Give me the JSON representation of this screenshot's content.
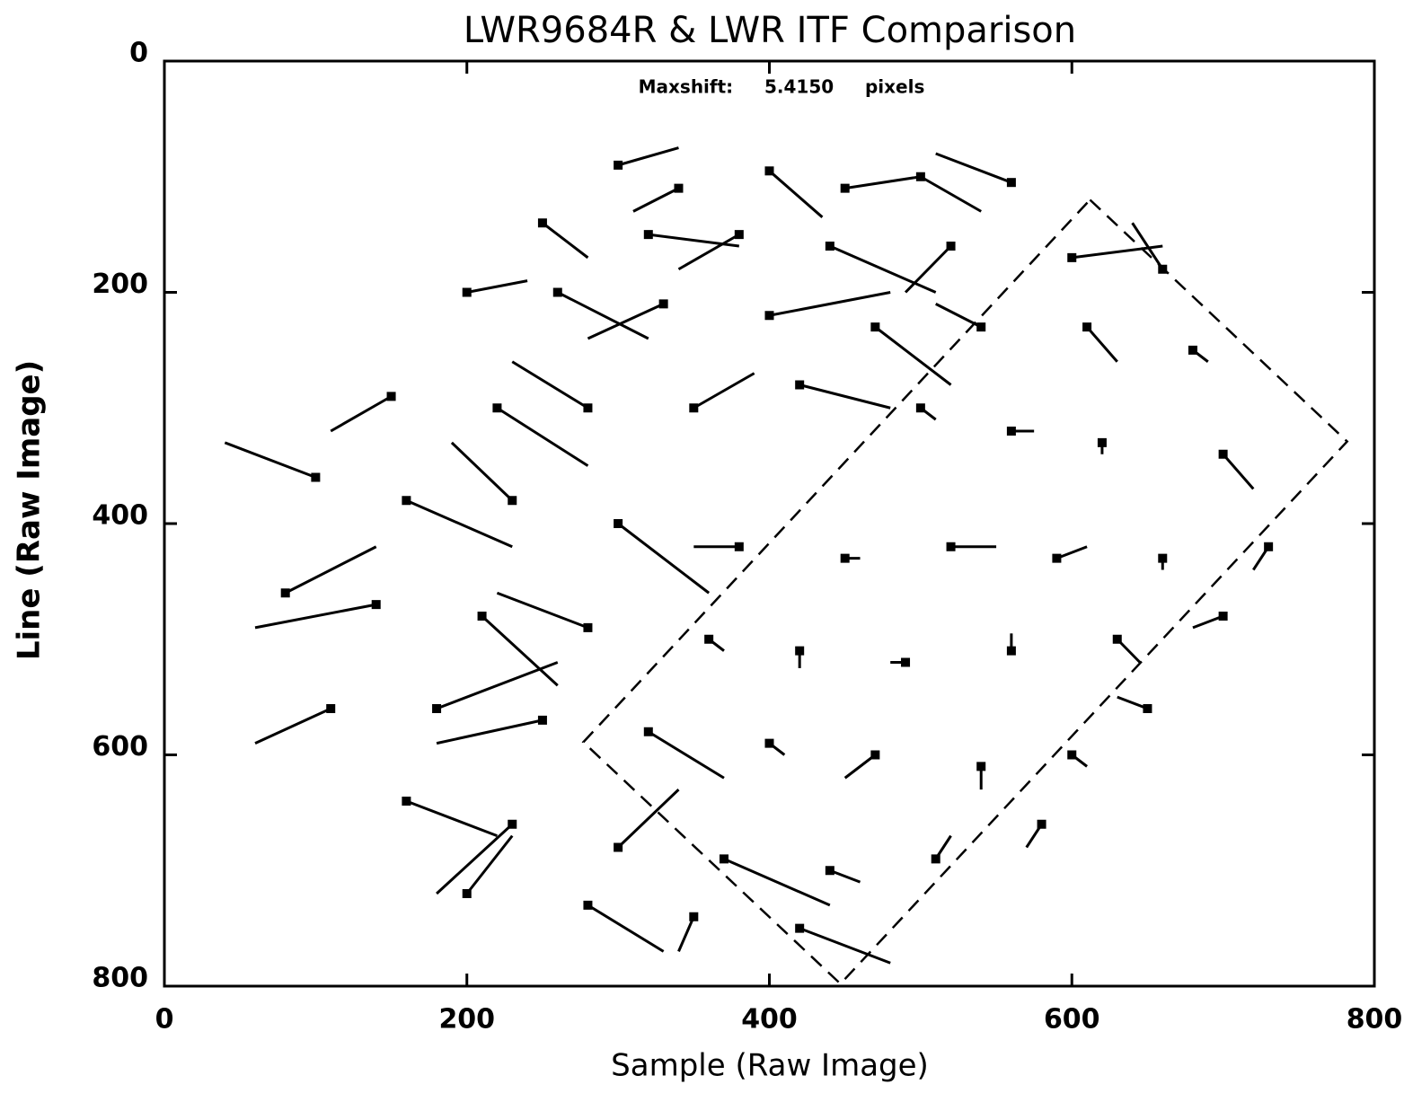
{
  "chart_data": {
    "type": "vector",
    "title": "LWR9684R & LWR ITF Comparison",
    "xlabel": "Sample  (Raw Image)",
    "ylabel": "Line  (Raw Image)",
    "annotation": "Maxshift:     5.4150     pixels",
    "xlim": [
      0,
      800
    ],
    "ylim": [
      0,
      800
    ],
    "y_inverted": true,
    "xticks": [
      0,
      200,
      400,
      600,
      800
    ],
    "yticks": [
      0,
      200,
      400,
      600,
      800
    ],
    "color": "#000000",
    "outline": {
      "x": [
        612,
        782,
        447,
        277,
        612
      ],
      "y": [
        120,
        329,
        798,
        589,
        120
      ]
    },
    "vectors": {
      "x": [
        300,
        340,
        400,
        450,
        500,
        560,
        250,
        320,
        380,
        440,
        520,
        600,
        660,
        200,
        260,
        330,
        400,
        470,
        540,
        610,
        680,
        150,
        220,
        280,
        350,
        420,
        500,
        560,
        620,
        700,
        100,
        160,
        230,
        300,
        380,
        450,
        520,
        590,
        660,
        730,
        80,
        140,
        210,
        280,
        360,
        420,
        490,
        560,
        630,
        700,
        110,
        180,
        250,
        320,
        400,
        470,
        540,
        600,
        160,
        230,
        300,
        370,
        440,
        510,
        200,
        280,
        350,
        420,
        580,
        650
      ],
      "y": [
        90,
        110,
        95,
        110,
        100,
        105,
        140,
        150,
        150,
        160,
        160,
        170,
        180,
        200,
        200,
        210,
        220,
        230,
        230,
        230,
        250,
        290,
        300,
        300,
        300,
        280,
        300,
        320,
        330,
        340,
        360,
        380,
        380,
        400,
        420,
        430,
        420,
        430,
        430,
        420,
        460,
        470,
        480,
        490,
        500,
        510,
        520,
        510,
        500,
        480,
        560,
        560,
        570,
        580,
        590,
        600,
        610,
        600,
        640,
        660,
        680,
        690,
        700,
        690,
        720,
        730,
        740,
        750,
        660,
        560
      ],
      "dx": [
        40,
        -30,
        35,
        50,
        40,
        -50,
        30,
        60,
        -40,
        70,
        -30,
        60,
        -20,
        40,
        60,
        -50,
        80,
        50,
        -30,
        20,
        10,
        -40,
        60,
        -50,
        40,
        60,
        10,
        15,
        0,
        20,
        -60,
        70,
        -40,
        60,
        -30,
        10,
        30,
        20,
        0,
        -10,
        60,
        -80,
        50,
        -60,
        10,
        0,
        -10,
        0,
        15,
        -20,
        -50,
        80,
        -70,
        50,
        10,
        -20,
        0,
        10,
        60,
        -50,
        40,
        70,
        20,
        10,
        30,
        50,
        -10,
        60,
        -10,
        -20
      ],
      "dy": [
        -15,
        20,
        40,
        -10,
        30,
        -25,
        30,
        10,
        30,
        40,
        40,
        -10,
        -40,
        -10,
        40,
        30,
        -20,
        50,
        -20,
        30,
        10,
        30,
        50,
        -40,
        -30,
        20,
        10,
        0,
        10,
        30,
        -30,
        40,
        -50,
        60,
        0,
        0,
        0,
        -10,
        10,
        20,
        -40,
        20,
        60,
        -30,
        10,
        15,
        0,
        -15,
        20,
        10,
        30,
        -40,
        20,
        40,
        10,
        20,
        20,
        10,
        30,
        60,
        -50,
        40,
        10,
        -20,
        -50,
        40,
        30,
        30,
        20,
        -10
      ]
    }
  }
}
